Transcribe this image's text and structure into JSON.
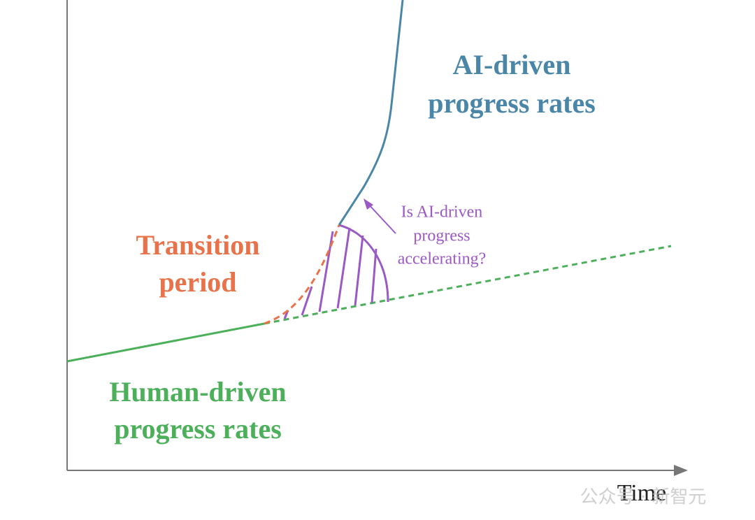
{
  "ai_label": [
    "AI-driven",
    "progress rates"
  ],
  "transition_label": [
    "Transition",
    "period"
  ],
  "human_label": [
    "Human-driven",
    "progress rates"
  ],
  "question": [
    "Is AI-driven",
    "progress",
    "accelerating?"
  ],
  "x_axis_label": "Time",
  "watermark": "公众号 · 新智元"
}
